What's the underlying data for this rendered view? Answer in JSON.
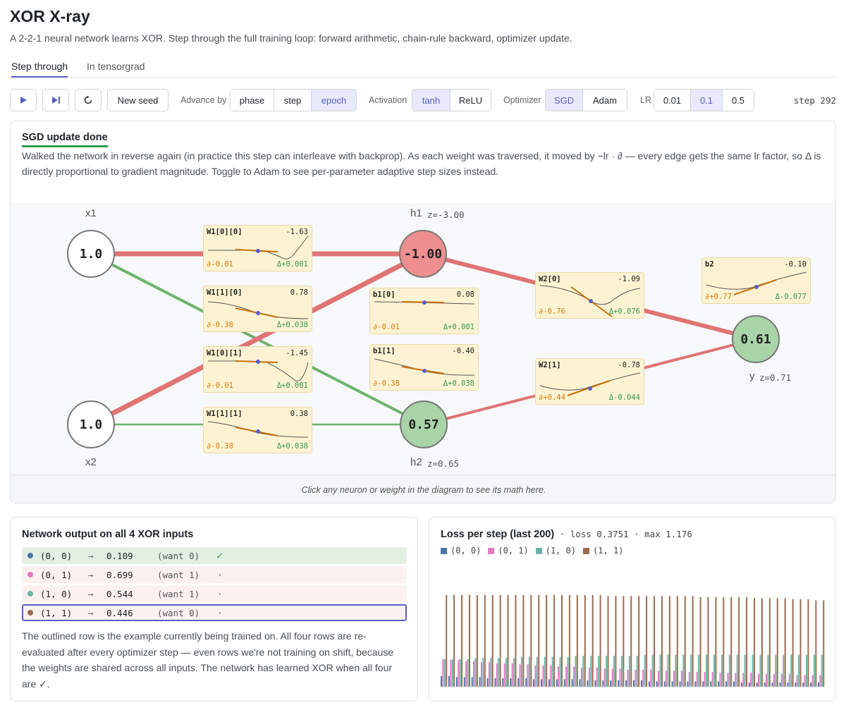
{
  "title": "XOR X-ray",
  "subtitle": "A 2-2-1 neural network learns XOR. Step through the full training loop: forward arithmetic, chain-rule backward, optimizer update.",
  "tabs": [
    {
      "label": "Step through",
      "active": true
    },
    {
      "label": "In tensorgrad",
      "active": false
    }
  ],
  "toolbar": {
    "play_icon": "play-icon",
    "step_icon": "step-forward-icon",
    "reset_icon": "reset-icon",
    "new_seed": "New seed",
    "advance_label": "Advance by",
    "advance_options": [
      "phase",
      "step",
      "epoch"
    ],
    "advance_selected": "epoch",
    "activation_label": "Activation",
    "activation_options": [
      "tanh",
      "ReLU"
    ],
    "activation_selected": "tanh",
    "optimizer_label": "Optimizer",
    "optimizer_options": [
      "SGD",
      "Adam"
    ],
    "optimizer_selected": "SGD",
    "lr_label": "LR",
    "lr_options": [
      "0.01",
      "0.1",
      "0.5"
    ],
    "lr_selected": "0.1",
    "step_counter": "step 292"
  },
  "phase": {
    "title": "SGD update done",
    "description": "Walked the network in reverse again (in practice this step can interleave with backprop). As each weight was traversed, it moved by −lr · ∂ — every edge gets the same lr factor, so Δ is directly proportional to gradient magnitude. Toggle to Adam to see per-parameter adaptive step sizes instead."
  },
  "network": {
    "inputs": [
      {
        "name": "x1",
        "value": "1.0"
      },
      {
        "name": "x2",
        "value": "1.0"
      }
    ],
    "hidden": [
      {
        "name": "h1",
        "z": "z=-3.00",
        "value": "-1.00",
        "color": "#ee8f8f"
      },
      {
        "name": "h2",
        "z": "z=0.65",
        "value": "0.57",
        "color": "#a8d4a8"
      }
    ],
    "output": {
      "name": "y",
      "z": "z=0.71",
      "value": "0.61",
      "color": "#a8d4a8"
    },
    "params": [
      {
        "name": "W1[0][0]",
        "value": "-1.63",
        "grad": "∂-0.01",
        "delta": "Δ+0.001"
      },
      {
        "name": "W1[1][0]",
        "value": "0.78",
        "grad": "∂-0.38",
        "delta": "Δ+0.038"
      },
      {
        "name": "W1[0][1]",
        "value": "-1.45",
        "grad": "∂-0.01",
        "delta": "Δ+0.001"
      },
      {
        "name": "W1[1][1]",
        "value": "0.38",
        "grad": "∂-0.38",
        "delta": "Δ+0.038"
      },
      {
        "name": "b1[0]",
        "value": "0.08",
        "grad": "∂-0.01",
        "delta": "Δ+0.001"
      },
      {
        "name": "b1[1]",
        "value": "-0.40",
        "grad": "∂-0.38",
        "delta": "Δ+0.038"
      },
      {
        "name": "W2[0]",
        "value": "-1.09",
        "grad": "∂-0.76",
        "delta": "Δ+0.076"
      },
      {
        "name": "W2[1]",
        "value": "-0.78",
        "grad": "∂+0.44",
        "delta": "Δ-0.044"
      },
      {
        "name": "b2",
        "value": "-0.10",
        "grad": "∂+0.77",
        "delta": "Δ-0.077"
      }
    ],
    "edge_colors": {
      "negative": "#e07474",
      "positive": "#6db36d"
    }
  },
  "math_hint": "Click any neuron or weight in the diagram to see its math here.",
  "xor_panel": {
    "title": "Network output on all 4 XOR inputs",
    "arrow": "→",
    "rows": [
      {
        "input": "(0, 0)",
        "output": "0.109",
        "want": "(want 0)",
        "mark": "✓",
        "correct": true,
        "current": false,
        "color": "#4a78a8"
      },
      {
        "input": "(0, 1)",
        "output": "0.699",
        "want": "(want 1)",
        "mark": "·",
        "correct": false,
        "current": false,
        "color": "#e377c2"
      },
      {
        "input": "(1, 0)",
        "output": "0.544",
        "want": "(want 1)",
        "mark": "·",
        "correct": false,
        "current": false,
        "color": "#6bb5a8"
      },
      {
        "input": "(1, 1)",
        "output": "0.446",
        "want": "(want 0)",
        "mark": "·",
        "correct": false,
        "current": true,
        "color": "#9c6b4e"
      }
    ],
    "note": "The outlined row is the example currently being trained on. All four rows are re-evaluated after every optimizer step — even rows we're not training on shift, because the weights are shared across all inputs. The network has learned XOR when all four are ✓."
  },
  "loss_panel": {
    "title": "Loss per step (last 200)",
    "sep": "·",
    "loss_text": "loss 0.3751",
    "max_text": "max 1.176",
    "legend": [
      {
        "label": "(0, 0)",
        "color": "#4a78a8"
      },
      {
        "label": "(0, 1)",
        "color": "#e377c2"
      },
      {
        "label": "(1, 0)",
        "color": "#6bb5a8"
      },
      {
        "label": "(1, 1)",
        "color": "#9c6b4e"
      }
    ]
  },
  "chart_data": {
    "type": "bar",
    "title": "Loss per step (last 200)",
    "ylim": [
      0,
      1.176
    ],
    "series": [
      {
        "name": "(0, 0)",
        "color": "#4a78a8",
        "values": [
          0.1,
          0.1,
          0.09,
          0.09,
          0.09,
          0.09,
          0.08,
          0.08,
          0.08,
          0.08,
          0.08,
          0.08,
          0.07,
          0.07,
          0.07,
          0.07,
          0.07,
          0.07,
          0.07,
          0.06,
          0.06,
          0.06,
          0.06,
          0.06,
          0.06,
          0.06,
          0.06,
          0.05,
          0.05,
          0.05,
          0.05,
          0.05,
          0.05,
          0.05,
          0.05,
          0.05,
          0.05,
          0.05,
          0.05,
          0.04,
          0.04,
          0.04,
          0.04,
          0.04,
          0.04,
          0.04,
          0.04,
          0.04,
          0.04,
          0.04
        ]
      },
      {
        "name": "(0, 1)",
        "color": "#e377c2",
        "values": [
          0.26,
          0.25,
          0.25,
          0.24,
          0.24,
          0.23,
          0.23,
          0.22,
          0.22,
          0.22,
          0.21,
          0.21,
          0.2,
          0.2,
          0.2,
          0.19,
          0.19,
          0.19,
          0.18,
          0.18,
          0.18,
          0.17,
          0.17,
          0.17,
          0.16,
          0.16,
          0.16,
          0.16,
          0.15,
          0.15,
          0.15,
          0.15,
          0.14,
          0.14,
          0.14,
          0.14,
          0.13,
          0.13,
          0.13,
          0.13,
          0.13,
          0.12,
          0.12,
          0.12,
          0.12,
          0.12,
          0.11,
          0.11,
          0.11,
          0.11
        ]
      },
      {
        "name": "(1, 0)",
        "color": "#6bb5a8",
        "values": [
          0.26,
          0.26,
          0.26,
          0.26,
          0.27,
          0.27,
          0.27,
          0.27,
          0.27,
          0.27,
          0.28,
          0.28,
          0.28,
          0.28,
          0.28,
          0.28,
          0.28,
          0.29,
          0.29,
          0.29,
          0.29,
          0.29,
          0.29,
          0.29,
          0.29,
          0.29,
          0.3,
          0.3,
          0.3,
          0.3,
          0.3,
          0.3,
          0.3,
          0.3,
          0.3,
          0.3,
          0.3,
          0.3,
          0.3,
          0.3,
          0.3,
          0.3,
          0.3,
          0.3,
          0.3,
          0.3,
          0.3,
          0.3,
          0.3,
          0.3
        ]
      },
      {
        "name": "(1, 1)",
        "color": "#9c6b4e",
        "values": [
          0.86,
          0.86,
          0.86,
          0.86,
          0.86,
          0.86,
          0.86,
          0.86,
          0.86,
          0.86,
          0.86,
          0.86,
          0.86,
          0.86,
          0.86,
          0.86,
          0.86,
          0.86,
          0.86,
          0.86,
          0.86,
          0.85,
          0.85,
          0.85,
          0.85,
          0.85,
          0.85,
          0.85,
          0.85,
          0.85,
          0.85,
          0.85,
          0.85,
          0.84,
          0.84,
          0.84,
          0.84,
          0.84,
          0.84,
          0.84,
          0.83,
          0.83,
          0.83,
          0.83,
          0.83,
          0.82,
          0.82,
          0.82,
          0.81,
          0.81
        ]
      }
    ]
  }
}
